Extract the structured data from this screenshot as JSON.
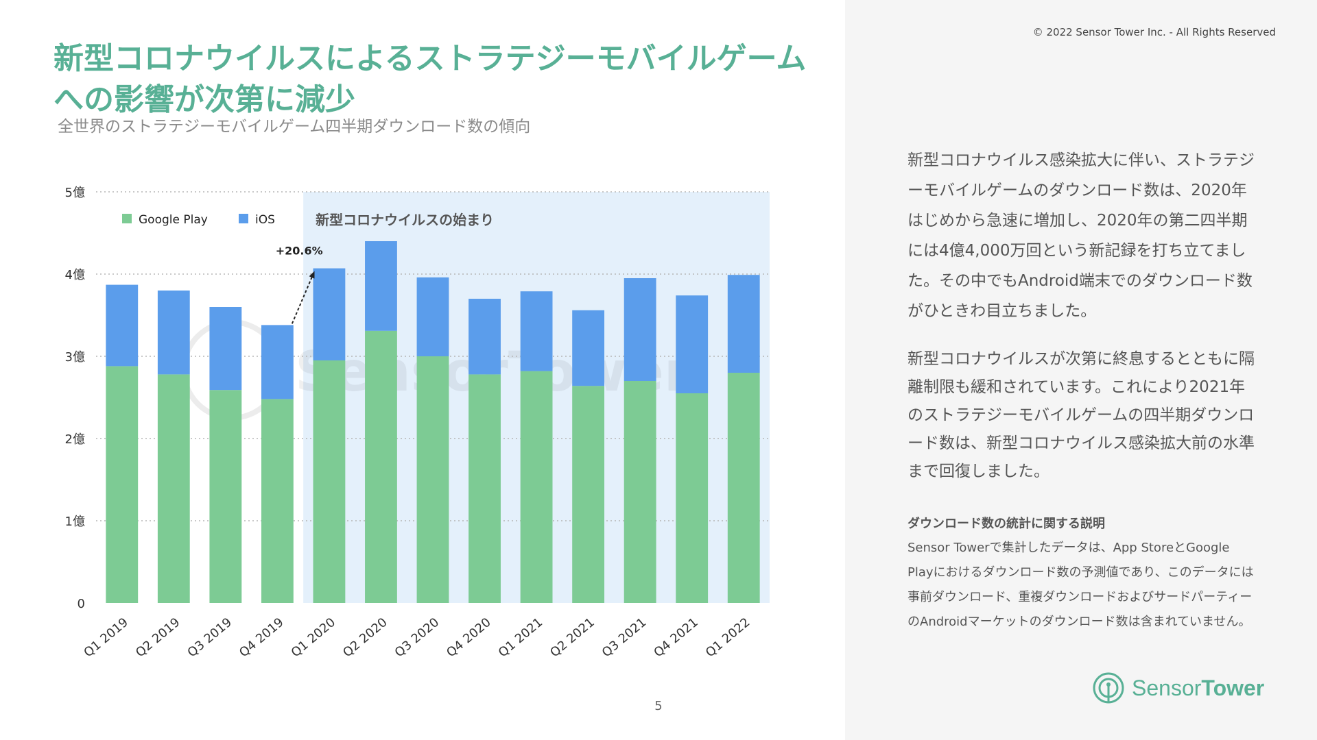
{
  "header": {
    "copyright": "© 2022 Sensor Tower Inc. - All Rights Reserved",
    "title_line1": "新型コロナウイルスによるストラテジーモバイルゲーム",
    "title_line2": "への影響が次第に減少",
    "subtitle": "全世界のストラテジーモバイルゲーム四半期ダウンロード数の傾向"
  },
  "chart_data": {
    "type": "bar",
    "stacked": true,
    "categories": [
      "Q1 2019",
      "Q2 2019",
      "Q3 2019",
      "Q4 2019",
      "Q1 2020",
      "Q2 2020",
      "Q3 2020",
      "Q4 2020",
      "Q1 2021",
      "Q2 2021",
      "Q3 2021",
      "Q4 2021",
      "Q1 2022"
    ],
    "series": [
      {
        "name": "Google Play",
        "color": "#7dcb94",
        "values": [
          2.88,
          2.78,
          2.59,
          2.48,
          2.95,
          3.31,
          3.0,
          2.78,
          2.82,
          2.64,
          2.7,
          2.55,
          2.8
        ]
      },
      {
        "name": "iOS",
        "color": "#5b9deb",
        "values": [
          0.99,
          1.02,
          1.01,
          0.9,
          1.12,
          1.09,
          0.96,
          0.92,
          0.97,
          0.92,
          1.25,
          1.19,
          1.19
        ]
      }
    ],
    "ylim": [
      0,
      5
    ],
    "yticks": [
      0,
      1,
      2,
      3,
      4,
      5
    ],
    "ytick_labels": [
      "0",
      "1億",
      "2億",
      "3億",
      "4億",
      "5億"
    ],
    "grid": true,
    "legend": [
      "Google Play",
      "iOS"
    ],
    "legend_position": "top-left",
    "highlight": {
      "label": "新型コロナウイルスの始まり",
      "from_category": "Q1 2020",
      "to_category": "Q1 2022",
      "color": "#e4f0fb"
    },
    "annotation": {
      "text": "+20.6%",
      "from_category": "Q4 2019",
      "to_category": "Q1 2020"
    },
    "watermark": "SensorTower"
  },
  "description": {
    "p1": "新型コロナウイルス感染拡大に伴い、ストラテジーモバイルゲームのダウンロード数は、2020年はじめから急速に増加し、2020年の第二四半期には4億4,000万回という新記録を打ち立てました。その中でもAndroid端末でのダウンロード数がひときわ目立ちました。",
    "p2": "新型コロナウイルスが次第に終息するとともに隔離制限も緩和されています。これにより2021年のストラテジーモバイルゲームの四半期ダウンロード数は、新型コロナウイルス感染拡大前の水準まで回復しました。",
    "note_title": "ダウンロード数の統計に関する説明",
    "note_body": "Sensor Towerで集計したデータは、App StoreとGoogle Playにおけるダウンロード数の予測値であり、このデータには事前ダウンロード、重複ダウンロードおよびサードパーティーのAndroidマーケットのダウンロード数は含まれていません。"
  },
  "footer": {
    "page_number": "5",
    "logo_word1": "Sensor",
    "logo_word2": "Tower"
  },
  "colors": {
    "accent": "#58b095",
    "panel_bg": "#f5f5f5"
  }
}
